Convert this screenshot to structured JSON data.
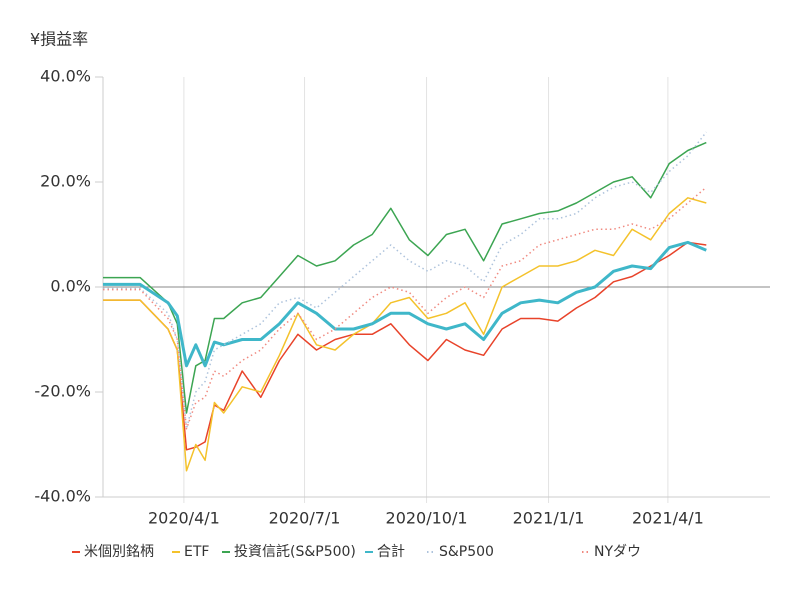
{
  "chart_data": {
    "type": "line",
    "y_label": "¥損益率",
    "x": [
      "2020-01-31",
      "2020-02-21",
      "2020-02-28",
      "2020-03-20",
      "2020-03-27",
      "2020-04-03",
      "2020-04-10",
      "2020-04-17",
      "2020-04-24",
      "2020-05-01",
      "2020-05-15",
      "2020-05-29",
      "2020-06-12",
      "2020-06-26",
      "2020-07-10",
      "2020-07-24",
      "2020-08-07",
      "2020-08-21",
      "2020-09-04",
      "2020-09-18",
      "2020-10-02",
      "2020-10-16",
      "2020-10-30",
      "2020-11-13",
      "2020-11-27",
      "2020-12-11",
      "2020-12-25",
      "2021-01-08",
      "2021-01-22",
      "2021-02-05",
      "2021-02-19",
      "2021-03-05",
      "2021-03-19",
      "2021-04-02",
      "2021-04-16",
      "2021-04-30"
    ],
    "series": [
      {
        "name": "米個別銘柄",
        "color": "#e8432a",
        "style": "solid",
        "values": [
          -2.5,
          -2.5,
          -2.5,
          -8,
          -12,
          -31,
          -30.5,
          -29.5,
          -22.5,
          -23.5,
          -16,
          -21,
          -14,
          -9,
          -12,
          -10,
          -9,
          -9,
          -7,
          -11,
          -14,
          -10,
          -12,
          -13,
          -8,
          -6,
          -6,
          -6.5,
          -4,
          -2,
          1,
          2,
          4,
          6,
          8.5,
          8
        ]
      },
      {
        "name": "ETF",
        "color": "#f4c22b",
        "style": "solid",
        "values": [
          -2.5,
          -2.5,
          -2.5,
          -8,
          -12,
          -35,
          -30,
          -33,
          -22,
          -24,
          -19,
          -20,
          -13,
          -5,
          -11,
          -12,
          -9,
          -7,
          -3,
          -2,
          -6,
          -5,
          -3,
          -9,
          0,
          2,
          4,
          4,
          5,
          7,
          6,
          11,
          9,
          14,
          17,
          16
        ]
      },
      {
        "name": "投資信託(S&P500)",
        "color": "#3ca552",
        "style": "solid",
        "values": [
          1.8,
          1.8,
          1.8,
          -3,
          -7,
          -24,
          -15,
          -14,
          -6,
          -6,
          -3,
          -2,
          2,
          6,
          4,
          5,
          8,
          10,
          15,
          9,
          6,
          10,
          11,
          5,
          12,
          13,
          14,
          14.5,
          16,
          18,
          20,
          21,
          17,
          23.5,
          26,
          27.5
        ]
      },
      {
        "name": "合計",
        "color": "#3fb7c9",
        "style": "bold",
        "values": [
          0.5,
          0.5,
          0.5,
          -3,
          -5.5,
          -15,
          -11,
          -15,
          -10.5,
          -11,
          -10,
          -10,
          -7,
          -3,
          -5,
          -8,
          -8,
          -7,
          -5,
          -5,
          -7,
          -8,
          -7,
          -10,
          -5,
          -3,
          -2.5,
          -3,
          -1,
          0,
          3,
          4,
          3.5,
          7.5,
          8.5,
          7
        ]
      },
      {
        "name": "S&P500",
        "color": "#aec3dc",
        "style": "dotted",
        "values": [
          -0.3,
          -0.3,
          -0.3,
          -5,
          -10,
          -27,
          -20,
          -18,
          -12,
          -11,
          -9,
          -7,
          -3,
          -2,
          -4,
          -1,
          2,
          5,
          8,
          5,
          3,
          5,
          4,
          1,
          8,
          10,
          13,
          13,
          14,
          17,
          19,
          20,
          18,
          22,
          25,
          29.5
        ]
      },
      {
        "name": "NYダウ",
        "color": "#f08a80",
        "style": "dotted",
        "values": [
          -0.5,
          -0.5,
          -0.5,
          -6,
          -10,
          -27,
          -22,
          -21,
          -16,
          -17,
          -14,
          -12,
          -8,
          -5,
          -10,
          -8,
          -5,
          -2,
          0,
          -1,
          -5,
          -2,
          0,
          -2,
          4,
          5,
          8,
          9,
          10,
          11,
          11,
          12,
          11,
          13,
          16,
          19
        ]
      }
    ],
    "xlim": [
      "2020-01-31",
      "2021-06-17"
    ],
    "xticks": [
      {
        "value": "2020-04-01",
        "label": "2020/4/1"
      },
      {
        "value": "2020-07-01",
        "label": "2020/7/1"
      },
      {
        "value": "2020-10-01",
        "label": "2020/10/1"
      },
      {
        "value": "2021-01-01",
        "label": "2021/1/1"
      },
      {
        "value": "2021-04-01",
        "label": "2021/4/1"
      }
    ],
    "ylim": [
      -40,
      40
    ],
    "yticks": [
      {
        "value": 40,
        "label": "40.0%"
      },
      {
        "value": 20,
        "label": "20.0%"
      },
      {
        "value": 0,
        "label": "0.0%"
      },
      {
        "value": -20,
        "label": "-20.0%"
      },
      {
        "value": -40,
        "label": "-40.0%"
      }
    ],
    "grid": "x"
  }
}
